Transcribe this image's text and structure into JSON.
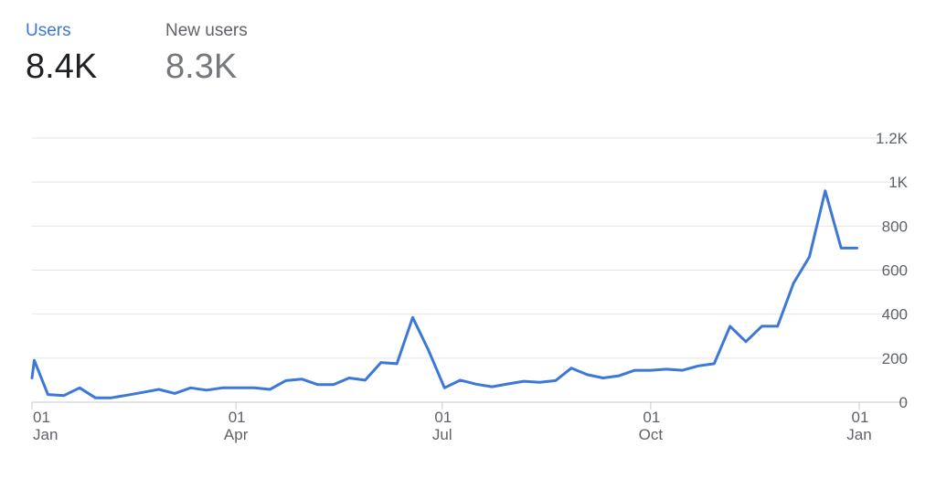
{
  "metrics": [
    {
      "label": "Users",
      "value": "8.4K",
      "color": "#3b78d8"
    },
    {
      "label": "New users",
      "value": "8.3K",
      "color": "#5f6368"
    }
  ],
  "chart_data": {
    "type": "line",
    "title": "",
    "xlabel": "",
    "ylabel": "",
    "ylim": [
      0,
      1200
    ],
    "y_ticks": [
      {
        "value": 0,
        "label": "0"
      },
      {
        "value": 200,
        "label": "200"
      },
      {
        "value": 400,
        "label": "400"
      },
      {
        "value": 600,
        "label": "600"
      },
      {
        "value": 800,
        "label": "800"
      },
      {
        "value": 1000,
        "label": "1K"
      },
      {
        "value": 1200,
        "label": "1.2K"
      }
    ],
    "x_ticks": [
      {
        "date": "2023-01-01",
        "day": "01",
        "month": "Jan"
      },
      {
        "date": "2023-04-01",
        "day": "01",
        "month": "Apr"
      },
      {
        "date": "2023-07-01",
        "day": "01",
        "month": "Jul"
      },
      {
        "date": "2023-10-01",
        "day": "01",
        "month": "Oct"
      },
      {
        "date": "2024-01-01",
        "day": "01",
        "month": "Jan"
      }
    ],
    "grid": true,
    "y_axis_position": "right",
    "series": [
      {
        "name": "Users",
        "color": "#3b78d8",
        "x": [
          "2023-01-01",
          "2023-01-02",
          "2023-01-08",
          "2023-01-15",
          "2023-01-22",
          "2023-01-29",
          "2023-02-05",
          "2023-02-12",
          "2023-02-19",
          "2023-02-26",
          "2023-03-05",
          "2023-03-12",
          "2023-03-19",
          "2023-03-26",
          "2023-04-02",
          "2023-04-09",
          "2023-04-16",
          "2023-04-23",
          "2023-04-30",
          "2023-05-07",
          "2023-05-14",
          "2023-05-21",
          "2023-05-28",
          "2023-06-04",
          "2023-06-11",
          "2023-06-18",
          "2023-06-25",
          "2023-07-02",
          "2023-07-09",
          "2023-07-16",
          "2023-07-23",
          "2023-07-30",
          "2023-08-06",
          "2023-08-13",
          "2023-08-20",
          "2023-08-27",
          "2023-09-03",
          "2023-09-10",
          "2023-09-17",
          "2023-09-24",
          "2023-10-01",
          "2023-10-08",
          "2023-10-15",
          "2023-10-22",
          "2023-10-29",
          "2023-11-05",
          "2023-11-12",
          "2023-11-19",
          "2023-11-26",
          "2023-12-03",
          "2023-12-10",
          "2023-12-17",
          "2023-12-24",
          "2023-12-31"
        ],
        "values": [
          110,
          190,
          35,
          30,
          65,
          20,
          20,
          32,
          45,
          58,
          40,
          65,
          55,
          65,
          65,
          65,
          58,
          98,
          105,
          80,
          80,
          110,
          100,
          180,
          175,
          385,
          235,
          65,
          100,
          82,
          70,
          83,
          95,
          90,
          98,
          155,
          125,
          110,
          120,
          145,
          145,
          150,
          145,
          165,
          175,
          345,
          275,
          345,
          345,
          540,
          660,
          960,
          700,
          700
        ]
      }
    ]
  }
}
